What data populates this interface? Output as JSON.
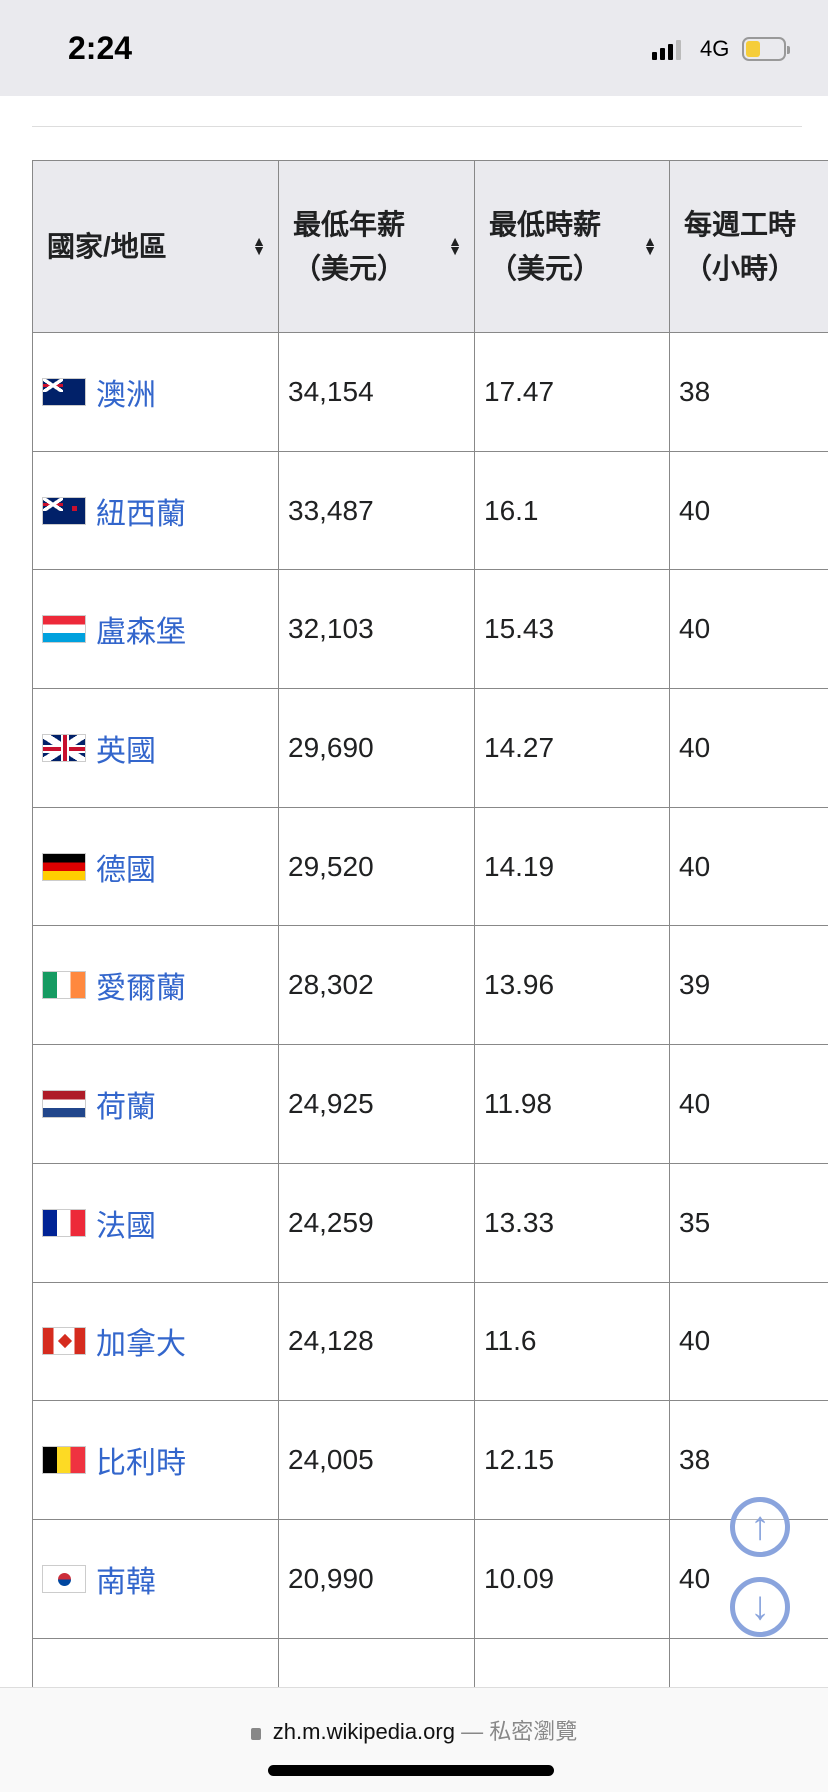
{
  "status_bar": {
    "time": "2:24",
    "network": "4G",
    "battery_level": 0.4
  },
  "table": {
    "headers": [
      {
        "line1": "國家/地區",
        "line2": ""
      },
      {
        "line1": "最低年薪",
        "line2": "（美元）"
      },
      {
        "line1": "最低時薪",
        "line2": "（美元）"
      },
      {
        "line1": "每週工時",
        "line2": "（小時）"
      }
    ],
    "rows": [
      {
        "country": "澳洲",
        "flag": "australia",
        "annual": "34,154",
        "hourly": "17.47",
        "hours": "38"
      },
      {
        "country": "紐西蘭",
        "flag": "new-zealand",
        "annual": "33,487",
        "hourly": "16.1",
        "hours": "40"
      },
      {
        "country": "盧森堡",
        "flag": "luxembourg",
        "annual": "32,103",
        "hourly": "15.43",
        "hours": "40"
      },
      {
        "country": "英國",
        "flag": "uk",
        "annual": "29,690",
        "hourly": "14.27",
        "hours": "40"
      },
      {
        "country": "德國",
        "flag": "germany",
        "annual": "29,520",
        "hourly": "14.19",
        "hours": "40"
      },
      {
        "country": "愛爾蘭",
        "flag": "ireland",
        "annual": "28,302",
        "hourly": "13.96",
        "hours": "39"
      },
      {
        "country": "荷蘭",
        "flag": "netherlands",
        "annual": "24,925",
        "hourly": "11.98",
        "hours": "40"
      },
      {
        "country": "法國",
        "flag": "france",
        "annual": "24,259",
        "hourly": "13.33",
        "hours": "35"
      },
      {
        "country": "加拿大",
        "flag": "canada",
        "annual": "24,128",
        "hourly": "11.6",
        "hours": "40"
      },
      {
        "country": "比利時",
        "flag": "belgium",
        "annual": "24,005",
        "hourly": "12.15",
        "hours": "38"
      },
      {
        "country": "南韓",
        "flag": "south-korea",
        "annual": "20,990",
        "hourly": "10.09",
        "hours": "40"
      }
    ]
  },
  "browser": {
    "domain": "zh.m.wikipedia.org",
    "separator": " — ",
    "mode": "私密瀏覽"
  },
  "colors": {
    "link": "#3366cc",
    "scroll_button": "#8aa4dd",
    "header_bg": "#eaeaee"
  }
}
